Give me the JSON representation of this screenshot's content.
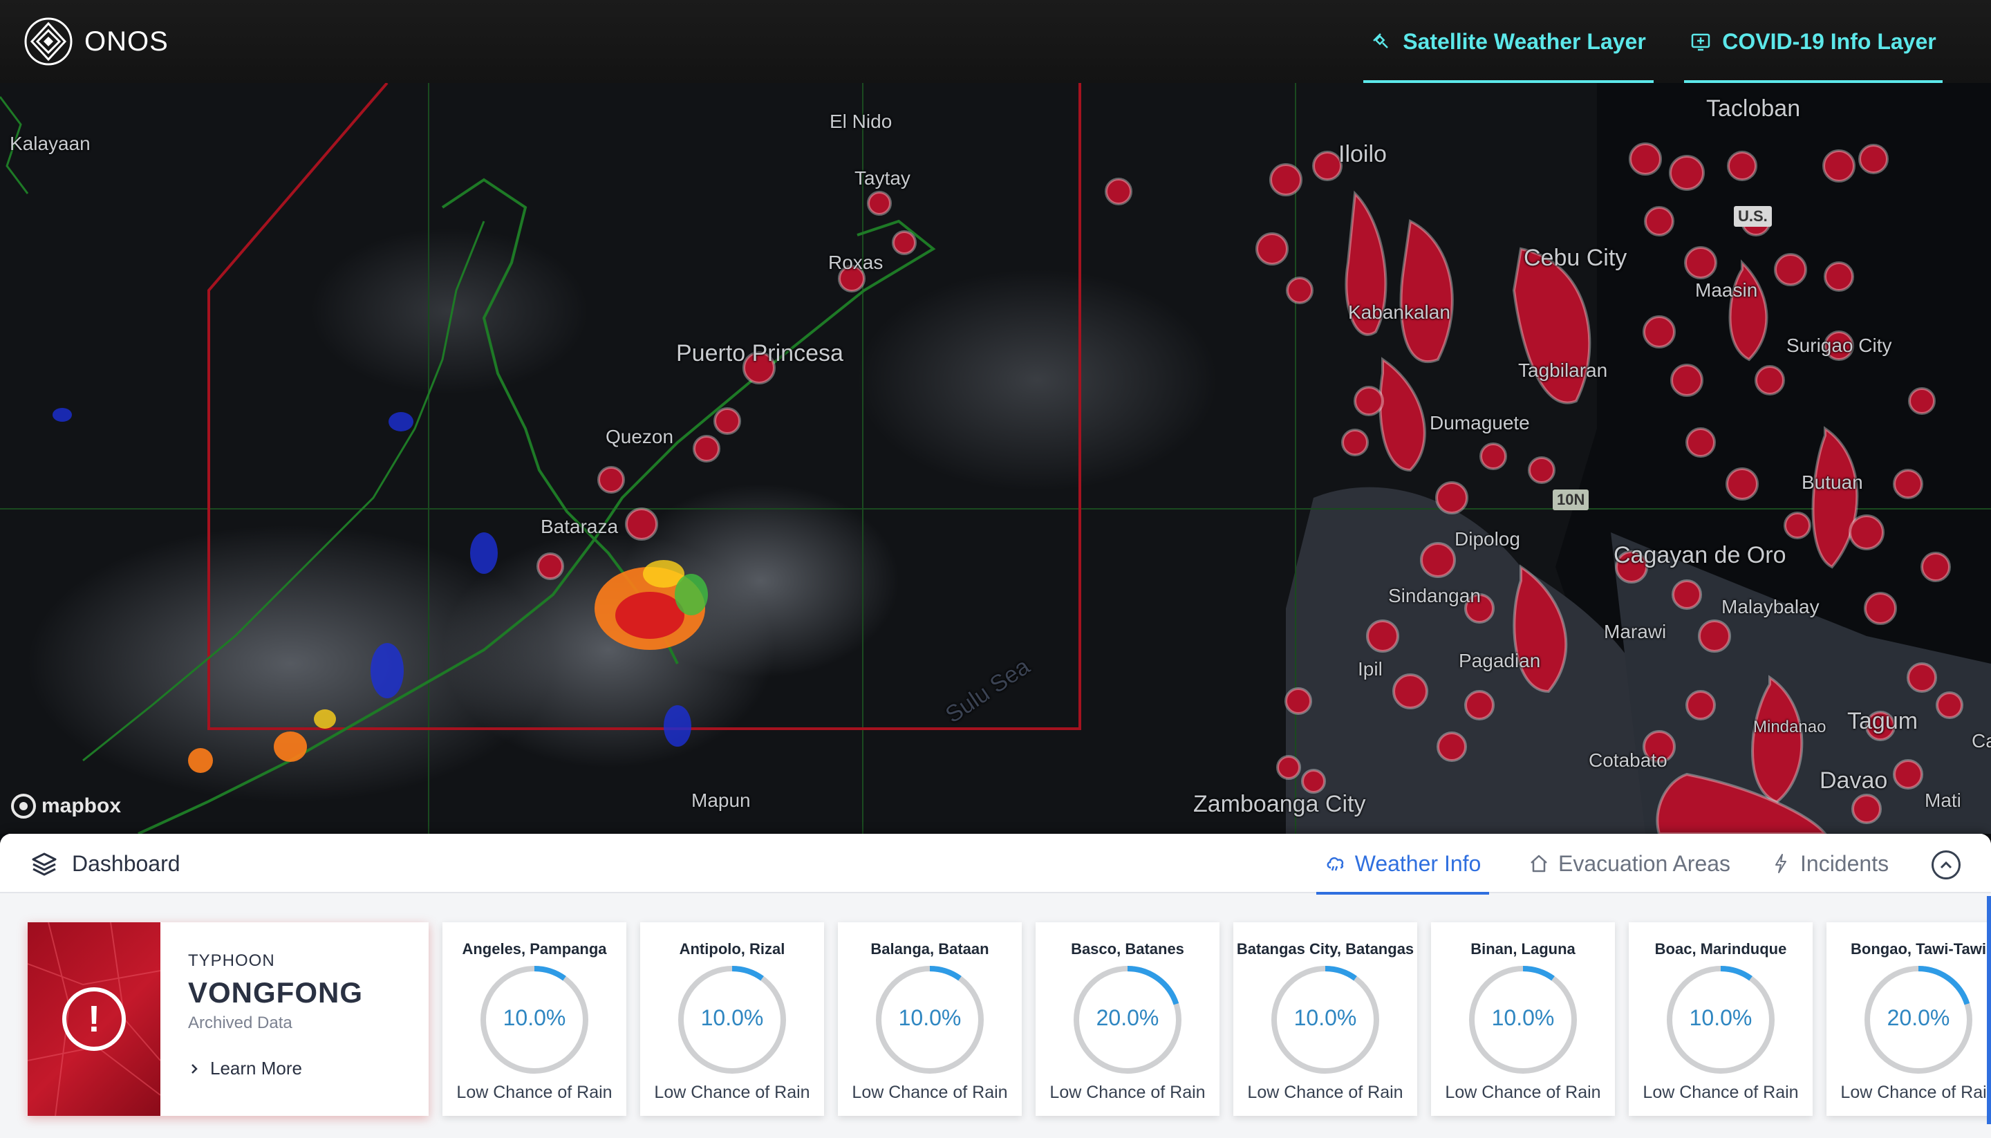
{
  "app": {
    "name": "ONOS"
  },
  "header": {
    "layers": [
      {
        "label": "Satellite Weather Layer",
        "icon": "satellite-icon"
      },
      {
        "label": "COVID-19 Info Layer",
        "icon": "info-plus-icon"
      }
    ]
  },
  "map": {
    "attribution": "mapbox",
    "badges": [
      "10N",
      "U.S."
    ],
    "places": [
      {
        "name": "Kalayaan"
      },
      {
        "name": "El Nido"
      },
      {
        "name": "Taytay"
      },
      {
        "name": "Roxas"
      },
      {
        "name": "Puerto Princesa"
      },
      {
        "name": "Quezon"
      },
      {
        "name": "Bataraza"
      },
      {
        "name": "Sulu Sea"
      },
      {
        "name": "Mapun"
      },
      {
        "name": "Zamboanga City"
      },
      {
        "name": "Iloilo"
      },
      {
        "name": "Tacloban"
      },
      {
        "name": "Cebu City"
      },
      {
        "name": "Kabankalan"
      },
      {
        "name": "Maasin"
      },
      {
        "name": "Surigao City"
      },
      {
        "name": "Tagbilaran"
      },
      {
        "name": "Dumaguete"
      },
      {
        "name": "Butuan"
      },
      {
        "name": "Dipolog"
      },
      {
        "name": "Cagayan de Oro"
      },
      {
        "name": "Sindangan"
      },
      {
        "name": "Malaybalay"
      },
      {
        "name": "Marawi"
      },
      {
        "name": "Ipil"
      },
      {
        "name": "Pagadian"
      },
      {
        "name": "Mindanao"
      },
      {
        "name": "Tagum"
      },
      {
        "name": "Cotabato"
      },
      {
        "name": "Davao"
      },
      {
        "name": "Mati"
      },
      {
        "name": "Ca"
      }
    ]
  },
  "dashboard": {
    "title": "Dashboard",
    "tabs": [
      {
        "label": "Weather Info",
        "active": true
      },
      {
        "label": "Evacuation Areas",
        "active": false
      },
      {
        "label": "Incidents",
        "active": false
      }
    ],
    "typhoon": {
      "type": "TYPHOON",
      "name": "VONGFONG",
      "status": "Archived Data",
      "link": "Learn More"
    },
    "weather": [
      {
        "location": "Angeles, Pampanga",
        "value": 10,
        "percent": "10.0%",
        "desc": "Low Chance of Rain"
      },
      {
        "location": "Antipolo, Rizal",
        "value": 10,
        "percent": "10.0%",
        "desc": "Low Chance of Rain"
      },
      {
        "location": "Balanga, Bataan",
        "value": 10,
        "percent": "10.0%",
        "desc": "Low Chance of Rain"
      },
      {
        "location": "Basco, Batanes",
        "value": 20,
        "percent": "20.0%",
        "desc": "Low Chance of Rain"
      },
      {
        "location": "Batangas City, Batangas",
        "value": 10,
        "percent": "10.0%",
        "desc": "Low Chance of Rain"
      },
      {
        "location": "Binan, Laguna",
        "value": 10,
        "percent": "10.0%",
        "desc": "Low Chance of Rain"
      },
      {
        "location": "Boac, Marinduque",
        "value": 10,
        "percent": "10.0%",
        "desc": "Low Chance of Rain"
      },
      {
        "location": "Bongao, Tawi-Tawi",
        "value": 20,
        "percent": "20.0%",
        "desc": "Low Chance of Rain"
      }
    ]
  },
  "colors": {
    "accent": "#5ce8ea",
    "tab_active": "#2f6fdf",
    "ring_progress": "#2e9be6",
    "ring_track": "#cfd0d2",
    "heat_red": "#b0102a"
  }
}
